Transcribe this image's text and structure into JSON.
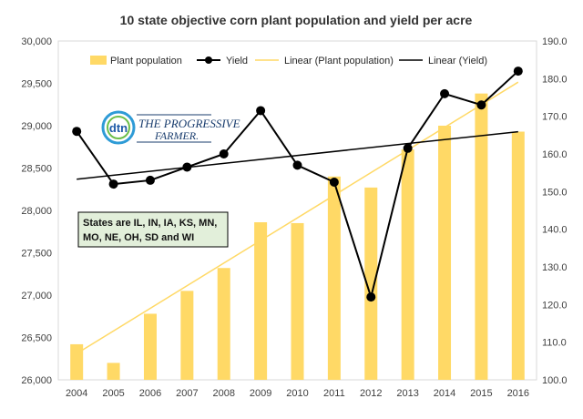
{
  "chart_data": {
    "type": "bar",
    "title": "10 state objective corn plant population and yield per acre",
    "categories": [
      "2004",
      "2005",
      "2006",
      "2007",
      "2008",
      "2009",
      "2010",
      "2011",
      "2012",
      "2013",
      "2014",
      "2015",
      "2016"
    ],
    "series": [
      {
        "name": "Plant population",
        "type": "bar",
        "axis": "left",
        "color": "#FFD966",
        "values": [
          26420,
          26200,
          26780,
          27050,
          27320,
          27860,
          27850,
          28400,
          28270,
          28720,
          29000,
          29380,
          28930
        ]
      },
      {
        "name": "Yield",
        "type": "line",
        "axis": "right",
        "color": "#000000",
        "values": [
          166.0,
          152.0,
          153.0,
          156.5,
          160.0,
          171.5,
          157.0,
          152.5,
          122.0,
          161.5,
          176.0,
          173.0,
          182.0
        ]
      },
      {
        "name": "Linear (Plant population)",
        "type": "trendline",
        "axis": "left",
        "color": "#FFD966",
        "values": [
          26310,
          26577,
          26844,
          27111,
          27378,
          27645,
          27912,
          28179,
          28446,
          28713,
          28980,
          29247,
          29514
        ]
      },
      {
        "name": "Linear (Yield)",
        "type": "trendline",
        "axis": "right",
        "color": "#000000",
        "values": [
          153.3,
          154.35,
          155.4,
          156.45,
          157.5,
          158.55,
          159.6,
          160.65,
          161.7,
          162.75,
          163.8,
          164.85,
          165.9
        ]
      }
    ],
    "y_left": {
      "min": 26000,
      "max": 30000,
      "ticks": [
        26000,
        26500,
        27000,
        27500,
        28000,
        28500,
        29000,
        29500,
        30000
      ],
      "tick_labels": [
        "26,000",
        "26,500",
        "27,000",
        "27,500",
        "28,000",
        "28,500",
        "29,000",
        "29,500",
        "30,000"
      ]
    },
    "y_right": {
      "min": 100,
      "max": 190,
      "ticks": [
        100,
        110,
        120,
        130,
        140,
        150,
        160,
        170,
        180,
        190
      ],
      "tick_labels": [
        "100.0",
        "110.0",
        "120.0",
        "130.0",
        "140.0",
        "150.0",
        "160.0",
        "170.0",
        "180.0",
        "190.0"
      ]
    },
    "grid": false,
    "legend_position": "top"
  },
  "annotation": {
    "lines": [
      "States are IL, IN, IA, KS, MN,",
      "MO, NE, OH, SD and WI"
    ]
  },
  "logo": {
    "badge": "dtn",
    "line1": "THE PROGRESSIVE",
    "line2": "FARMER."
  }
}
